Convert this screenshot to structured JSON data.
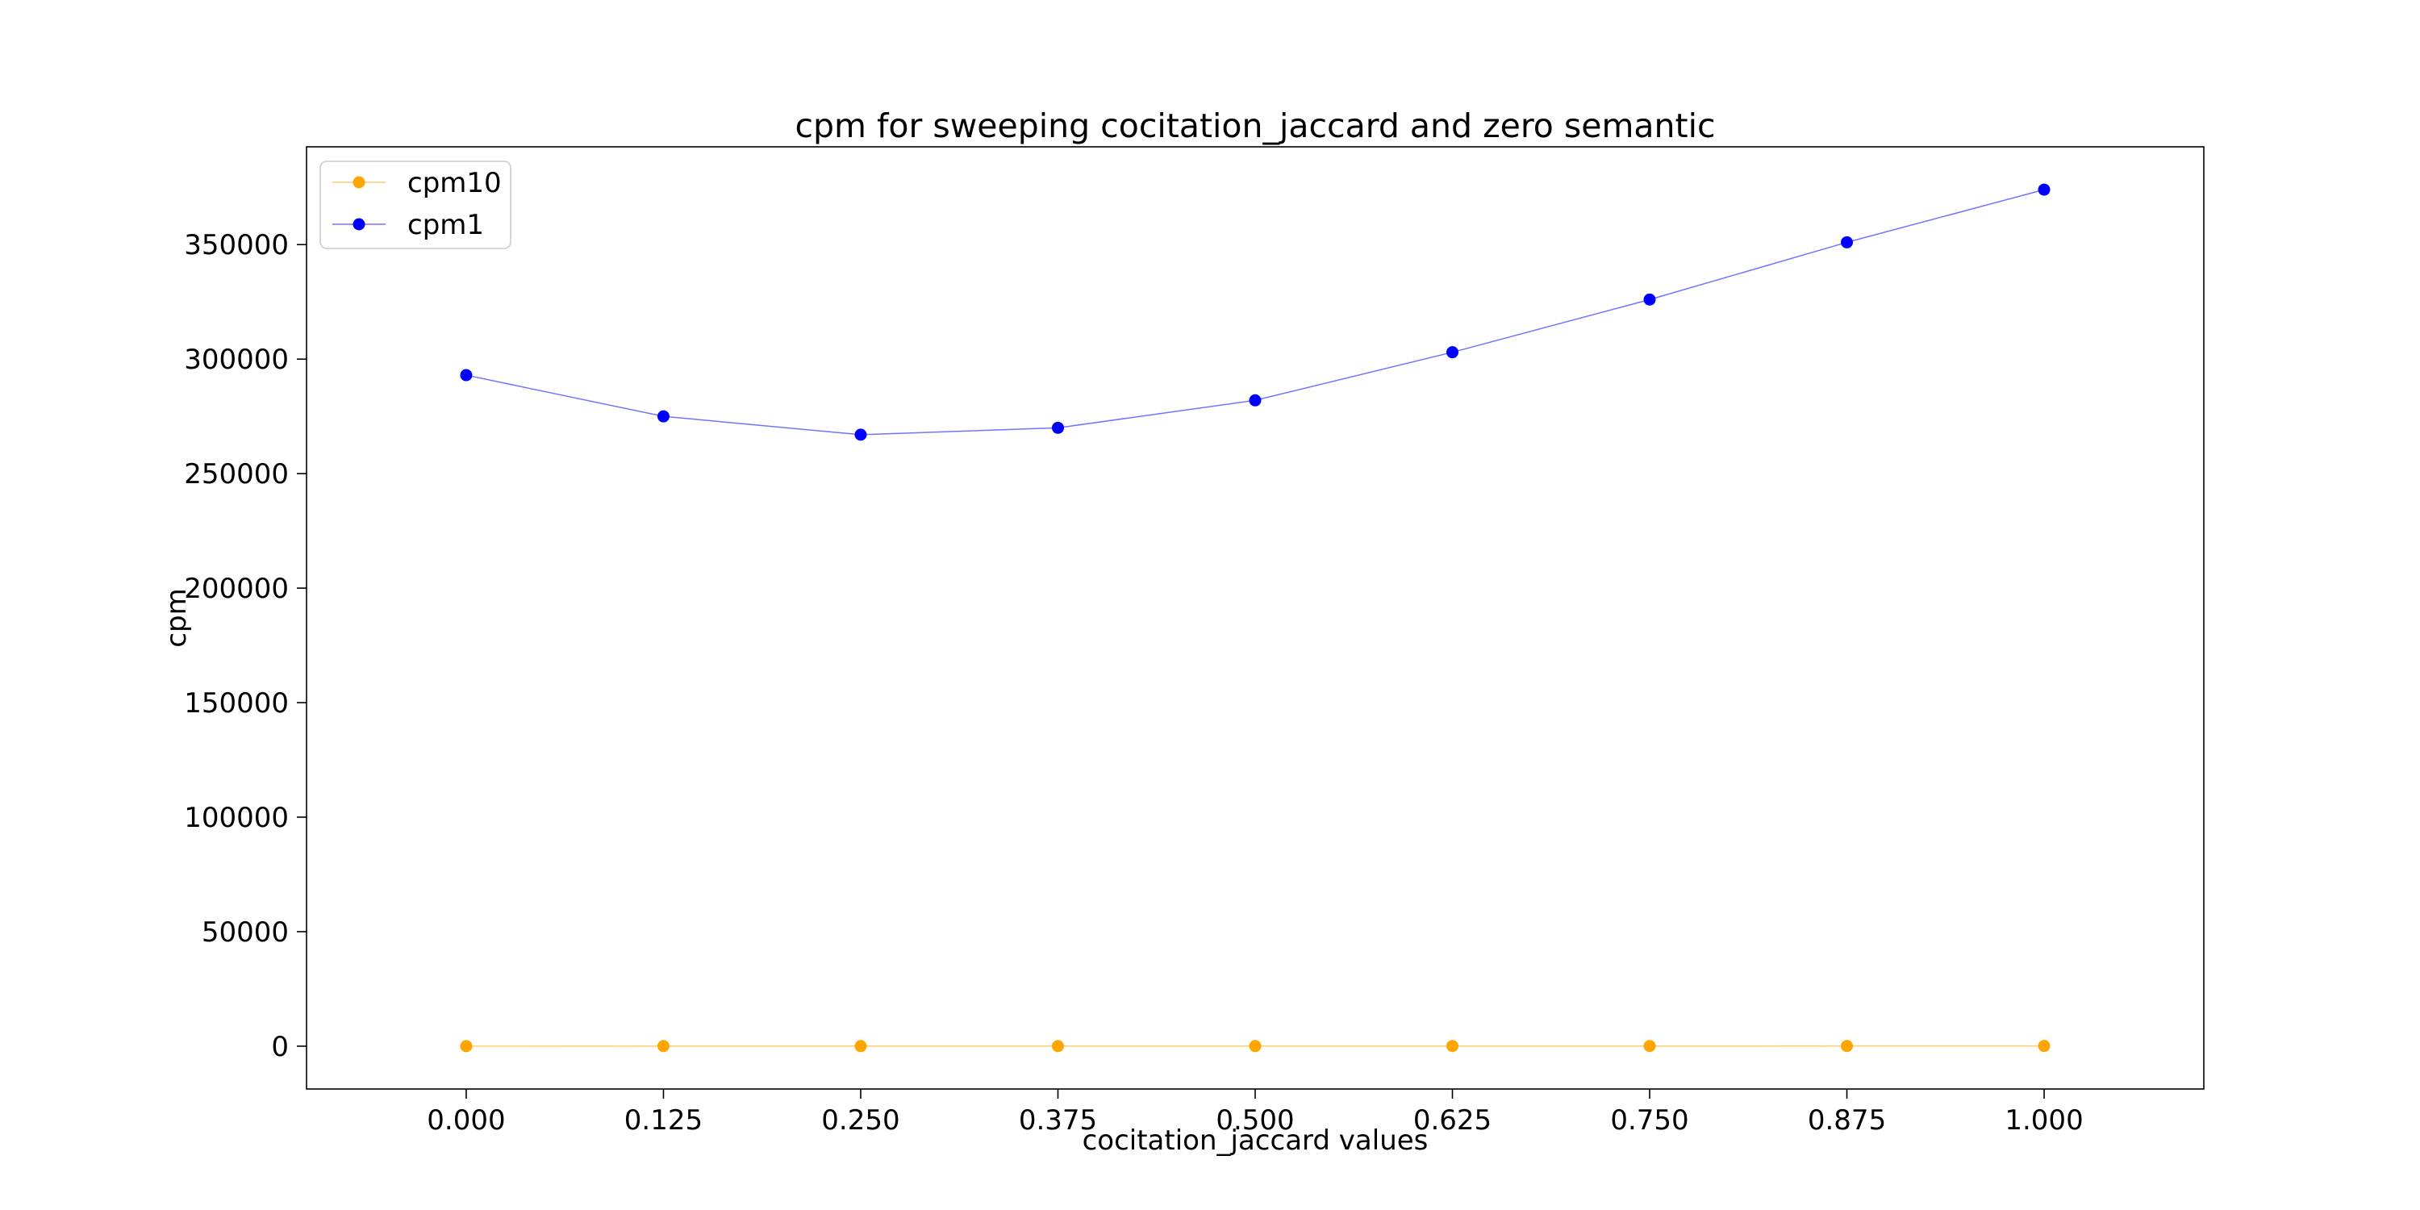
{
  "chart_data": {
    "type": "line",
    "title": "cpm for sweeping cocitation_jaccard and zero semantic",
    "xlabel": "cocitation_jaccard values",
    "ylabel": "cpm",
    "x": [
      0.0,
      0.125,
      0.25,
      0.375,
      0.5,
      0.625,
      0.75,
      0.875,
      1.0
    ],
    "x_tick_labels": [
      "0.000",
      "0.125",
      "0.250",
      "0.375",
      "0.500",
      "0.625",
      "0.750",
      "0.875",
      "1.000"
    ],
    "y_ticks": [
      0,
      50000,
      100000,
      150000,
      200000,
      250000,
      300000,
      350000
    ],
    "y_tick_labels": [
      "0",
      "50000",
      "100000",
      "150000",
      "200000",
      "250000",
      "300000",
      "350000"
    ],
    "xlim": [
      -0.1012,
      1.1012
    ],
    "ylim": [
      -18700,
      392700
    ],
    "grid": false,
    "legend_position": "top-left",
    "series": [
      {
        "name": "cpm10",
        "color": "#ffa500",
        "values": [
          30,
          35,
          40,
          45,
          50,
          60,
          70,
          80,
          90
        ]
      },
      {
        "name": "cpm1",
        "color": "#0000ff",
        "values": [
          293000,
          275000,
          267000,
          270000,
          282000,
          303000,
          326000,
          351000,
          374000
        ]
      }
    ]
  }
}
